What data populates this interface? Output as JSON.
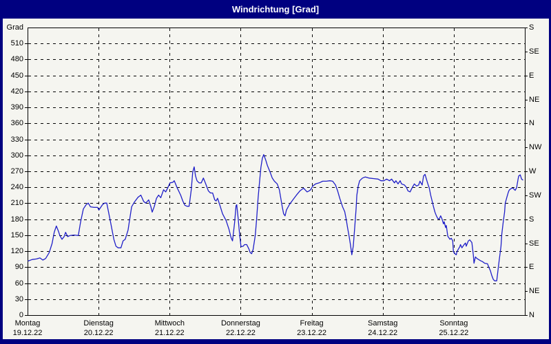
{
  "window": {
    "title": "Windrichtung [Grad]"
  },
  "colors": {
    "title_bar": "#000080",
    "title_text": "#FFFFFF",
    "panel_bg": "#F5F5F0",
    "plot_border": "#000000",
    "grid": "#000000",
    "line": "#1E1EC8",
    "label_text": "#000000"
  },
  "chart_data": {
    "type": "line",
    "title": "Windrichtung [Grad]",
    "grid": "dashed",
    "legend": "none",
    "y_axis_left": {
      "unit_label": "Grad",
      "range": [
        0,
        540
      ],
      "tick_step": 30,
      "ticks": [
        0,
        30,
        60,
        90,
        120,
        150,
        180,
        210,
        240,
        270,
        300,
        330,
        360,
        390,
        420,
        450,
        480,
        510
      ]
    },
    "y_axis_right": {
      "ticks": [
        {
          "value": 0,
          "label": "N"
        },
        {
          "value": 45,
          "label": "NE"
        },
        {
          "value": 90,
          "label": "E"
        },
        {
          "value": 135,
          "label": "SE"
        },
        {
          "value": 180,
          "label": "S"
        },
        {
          "value": 225,
          "label": "SW"
        },
        {
          "value": 270,
          "label": "W"
        },
        {
          "value": 315,
          "label": "NW"
        },
        {
          "value": 360,
          "label": "N"
        },
        {
          "value": 405,
          "label": "NE"
        },
        {
          "value": 450,
          "label": "E"
        },
        {
          "value": 495,
          "label": "SE"
        },
        {
          "value": 540,
          "label": "S"
        }
      ]
    },
    "x_axis": {
      "range_days": [
        0,
        7
      ],
      "day_labels": [
        {
          "name": "Montag",
          "date": "19.12.22"
        },
        {
          "name": "Dienstag",
          "date": "20.12.22"
        },
        {
          "name": "Mittwoch",
          "date": "21.12.22"
        },
        {
          "name": "Donnerstag",
          "date": "22.12.22"
        },
        {
          "name": "Freitag",
          "date": "23.12.22"
        },
        {
          "name": "Samstag",
          "date": "24.12.22"
        },
        {
          "name": "Sonntag",
          "date": "25.12.22"
        }
      ]
    },
    "series": [
      {
        "name": "Windrichtung",
        "color": "#1E1EC8",
        "points": [
          [
            0,
            102
          ],
          [
            0.06,
            105
          ],
          [
            0.12,
            106
          ],
          [
            0.17,
            108
          ],
          [
            0.21,
            104
          ],
          [
            0.25,
            107
          ],
          [
            0.3,
            118
          ],
          [
            0.34,
            135
          ],
          [
            0.37,
            156
          ],
          [
            0.4,
            168
          ],
          [
            0.43,
            158
          ],
          [
            0.45,
            150
          ],
          [
            0.48,
            143
          ],
          [
            0.51,
            148
          ],
          [
            0.53,
            156
          ],
          [
            0.56,
            148
          ],
          [
            0.59,
            150
          ],
          [
            0.65,
            151
          ],
          [
            0.71,
            150
          ],
          [
            0.74,
            174
          ],
          [
            0.76,
            187
          ],
          [
            0.78,
            200
          ],
          [
            0.82,
            208
          ],
          [
            0.85,
            211
          ],
          [
            0.88,
            204
          ],
          [
            0.93,
            203
          ],
          [
            0.98,
            203
          ],
          [
            1,
            198
          ],
          [
            1.05,
            208
          ],
          [
            1.08,
            211
          ],
          [
            1.11,
            211
          ],
          [
            1.16,
            178
          ],
          [
            1.21,
            143
          ],
          [
            1.24,
            130
          ],
          [
            1.27,
            127
          ],
          [
            1.31,
            127
          ],
          [
            1.34,
            140
          ],
          [
            1.37,
            143
          ],
          [
            1.41,
            160
          ],
          [
            1.43,
            178
          ],
          [
            1.46,
            204
          ],
          [
            1.5,
            213
          ],
          [
            1.55,
            222
          ],
          [
            1.59,
            226
          ],
          [
            1.63,
            214
          ],
          [
            1.66,
            211
          ],
          [
            1.7,
            217
          ],
          [
            1.73,
            205
          ],
          [
            1.75,
            194
          ],
          [
            1.78,
            205
          ],
          [
            1.81,
            220
          ],
          [
            1.84,
            226
          ],
          [
            1.87,
            221
          ],
          [
            1.91,
            236
          ],
          [
            1.94,
            232
          ],
          [
            1.97,
            240
          ],
          [
            2,
            249
          ],
          [
            2.04,
            250
          ],
          [
            2.06,
            253
          ],
          [
            2.1,
            240
          ],
          [
            2.15,
            226
          ],
          [
            2.18,
            215
          ],
          [
            2.21,
            207
          ],
          [
            2.24,
            205
          ],
          [
            2.27,
            205
          ],
          [
            2.3,
            236
          ],
          [
            2.32,
            269
          ],
          [
            2.34,
            279
          ],
          [
            2.36,
            262
          ],
          [
            2.38,
            253
          ],
          [
            2.41,
            249
          ],
          [
            2.44,
            249
          ],
          [
            2.47,
            258
          ],
          [
            2.5,
            248
          ],
          [
            2.54,
            234
          ],
          [
            2.57,
            230
          ],
          [
            2.6,
            230
          ],
          [
            2.63,
            217
          ],
          [
            2.65,
            215
          ],
          [
            2.67,
            220
          ],
          [
            2.7,
            208
          ],
          [
            2.74,
            191
          ],
          [
            2.79,
            178
          ],
          [
            2.83,
            162
          ],
          [
            2.86,
            146
          ],
          [
            2.88,
            140
          ],
          [
            2.91,
            174
          ],
          [
            2.93,
            206
          ],
          [
            2.94,
            208
          ],
          [
            2.96,
            182
          ],
          [
            2.98,
            152
          ],
          [
            3,
            129
          ],
          [
            3.03,
            130
          ],
          [
            3.05,
            133
          ],
          [
            3.08,
            133
          ],
          [
            3.11,
            125
          ],
          [
            3.13,
            118
          ],
          [
            3.15,
            116
          ],
          [
            3.17,
            124
          ],
          [
            3.2,
            150
          ],
          [
            3.22,
            181
          ],
          [
            3.24,
            220
          ],
          [
            3.26,
            249
          ],
          [
            3.28,
            278
          ],
          [
            3.3,
            295
          ],
          [
            3.32,
            302
          ],
          [
            3.35,
            291
          ],
          [
            3.37,
            282
          ],
          [
            3.41,
            269
          ],
          [
            3.44,
            258
          ],
          [
            3.47,
            252
          ],
          [
            3.51,
            247
          ],
          [
            3.54,
            236
          ],
          [
            3.56,
            220
          ],
          [
            3.58,
            204
          ],
          [
            3.6,
            191
          ],
          [
            3.62,
            187
          ],
          [
            3.64,
            198
          ],
          [
            3.68,
            208
          ],
          [
            3.73,
            217
          ],
          [
            3.78,
            226
          ],
          [
            3.83,
            234
          ],
          [
            3.88,
            239
          ],
          [
            3.93,
            232
          ],
          [
            3.96,
            234
          ],
          [
            3.98,
            236
          ],
          [
            4.01,
            243
          ],
          [
            4.05,
            247
          ],
          [
            4.1,
            249
          ],
          [
            4.15,
            252
          ],
          [
            4.2,
            252
          ],
          [
            4.25,
            253
          ],
          [
            4.29,
            252
          ],
          [
            4.33,
            245
          ],
          [
            4.36,
            234
          ],
          [
            4.39,
            220
          ],
          [
            4.43,
            204
          ],
          [
            4.46,
            195
          ],
          [
            4.48,
            181
          ],
          [
            4.5,
            165
          ],
          [
            4.52,
            150
          ],
          [
            4.54,
            133
          ],
          [
            4.56,
            114
          ],
          [
            4.58,
            130
          ],
          [
            4.6,
            165
          ],
          [
            4.62,
            200
          ],
          [
            4.63,
            226
          ],
          [
            4.65,
            243
          ],
          [
            4.67,
            253
          ],
          [
            4.71,
            258
          ],
          [
            4.75,
            260
          ],
          [
            4.8,
            258
          ],
          [
            4.87,
            257
          ],
          [
            4.93,
            256
          ],
          [
            4.97,
            253
          ],
          [
            5.01,
            253
          ],
          [
            5.05,
            256
          ],
          [
            5.09,
            253
          ],
          [
            5.12,
            256
          ],
          [
            5.16,
            249
          ],
          [
            5.18,
            253
          ],
          [
            5.21,
            247
          ],
          [
            5.24,
            253
          ],
          [
            5.26,
            247
          ],
          [
            5.3,
            245
          ],
          [
            5.33,
            240
          ],
          [
            5.35,
            234
          ],
          [
            5.38,
            232
          ],
          [
            5.41,
            240
          ],
          [
            5.44,
            247
          ],
          [
            5.47,
            243
          ],
          [
            5.5,
            245
          ],
          [
            5.52,
            252
          ],
          [
            5.55,
            245
          ],
          [
            5.57,
            262
          ],
          [
            5.59,
            265
          ],
          [
            5.61,
            256
          ],
          [
            5.63,
            247
          ],
          [
            5.65,
            239
          ],
          [
            5.67,
            226
          ],
          [
            5.69,
            215
          ],
          [
            5.71,
            204
          ],
          [
            5.73,
            194
          ],
          [
            5.75,
            187
          ],
          [
            5.77,
            182
          ],
          [
            5.79,
            181
          ],
          [
            5.81,
            187
          ],
          [
            5.83,
            181
          ],
          [
            5.85,
            172
          ],
          [
            5.86,
            176
          ],
          [
            5.88,
            165
          ],
          [
            5.89,
            169
          ],
          [
            5.91,
            149
          ],
          [
            5.94,
            143
          ],
          [
            5.96,
            145
          ],
          [
            5.98,
            140
          ],
          [
            5.99,
            120
          ],
          [
            6.01,
            116
          ],
          [
            6.03,
            114
          ],
          [
            6.04,
            120
          ],
          [
            6.08,
            129
          ],
          [
            6.09,
            133
          ],
          [
            6.11,
            127
          ],
          [
            6.14,
            133
          ],
          [
            6.16,
            136
          ],
          [
            6.17,
            130
          ],
          [
            6.2,
            140
          ],
          [
            6.22,
            142
          ],
          [
            6.25,
            137
          ],
          [
            6.27,
            114
          ],
          [
            6.28,
            98
          ],
          [
            6.3,
            110
          ],
          [
            6.32,
            107
          ],
          [
            6.37,
            103
          ],
          [
            6.4,
            101
          ],
          [
            6.43,
            98
          ],
          [
            6.47,
            97
          ],
          [
            6.49,
            90
          ],
          [
            6.51,
            84
          ],
          [
            6.53,
            75
          ],
          [
            6.55,
            68
          ],
          [
            6.57,
            65
          ],
          [
            6.6,
            65
          ],
          [
            6.62,
            88
          ],
          [
            6.64,
            110
          ],
          [
            6.66,
            130
          ],
          [
            6.67,
            152
          ],
          [
            6.69,
            174
          ],
          [
            6.71,
            194
          ],
          [
            6.72,
            211
          ],
          [
            6.74,
            221
          ],
          [
            6.76,
            230
          ],
          [
            6.77,
            234
          ],
          [
            6.78,
            236
          ],
          [
            6.81,
            239
          ],
          [
            6.83,
            239
          ],
          [
            6.85,
            236
          ],
          [
            6.86,
            235
          ],
          [
            6.88,
            240
          ],
          [
            6.9,
            256
          ],
          [
            6.91,
            262
          ],
          [
            6.93,
            264
          ],
          [
            6.95,
            256
          ],
          [
            6.97,
            254
          ]
        ]
      }
    ]
  }
}
